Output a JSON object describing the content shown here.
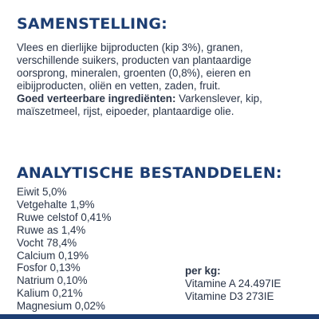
{
  "colors": {
    "heading": "#1d3e73",
    "body_text": "#2a3548",
    "accent_bar": "#1d3e73"
  },
  "composition": {
    "heading": "SAMENSTELLING:",
    "lines": [
      "Vlees en dierlijke bijproducten (kip 3%), granen,",
      "verschillende suikers, producten van plantaardige",
      "oorsprong, mineralen, groenten (0,8%), eieren en",
      "eibijproducten, oliën en vetten, zaden, fruit."
    ],
    "digestible_label": "Goed verteerbare ingrediënten:",
    "digestible_text_line1": " Varkenslever, kip,",
    "digestible_text_line2": "maïszetmeel, rijst, eipoeder, plantaardige olie."
  },
  "analytical": {
    "heading": "ANALYTISCHE BESTANDDELEN:",
    "items": [
      "Eiwit 5,0%",
      "Vetgehalte 1,9%",
      "Ruwe celstof 0,41%",
      "Ruwe as 1,4%",
      "Vocht 78,4%",
      "Calcium 0,19%",
      "Fosfor 0,13%",
      "Natrium 0,10%",
      "Kalium 0,21%",
      "Magnesium 0,02%"
    ],
    "per_kg": {
      "title": "per kg:",
      "items": [
        "Vitamine A 24.497IE",
        "Vitamine D3 273IE"
      ]
    }
  }
}
